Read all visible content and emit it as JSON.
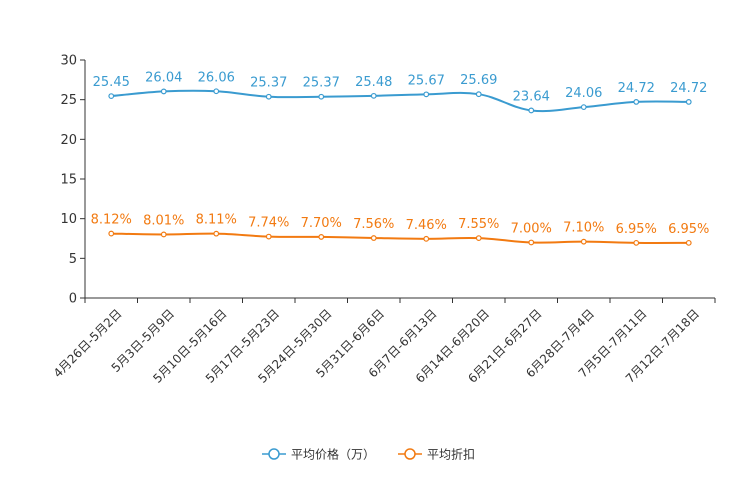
{
  "chart_data": {
    "type": "line",
    "title": "",
    "xlabel": "",
    "ylabel": "",
    "ylim": [
      0,
      30
    ],
    "yticks": [
      0,
      5,
      10,
      15,
      20,
      25,
      30
    ],
    "grid": false,
    "legend_position": "bottom-center",
    "categories": [
      "4月26日-5月2日",
      "5月3日-5月9日",
      "5月10日-5月16日",
      "5月17日-5月23日",
      "5月24日-5月30日",
      "5月31日-6月6日",
      "6月7日-6月13日",
      "6月14日-6月20日",
      "6月21日-6月27日",
      "6月28日-7月4日",
      "7月5日-7月11日",
      "7月12日-7月18日"
    ],
    "series": [
      {
        "name": "平均价格（万）",
        "color": "#3a9bd0",
        "values": [
          25.45,
          26.04,
          26.06,
          25.37,
          25.37,
          25.48,
          25.67,
          25.69,
          23.64,
          24.06,
          24.72,
          24.72
        ],
        "labels": [
          "25.45",
          "26.04",
          "26.06",
          "25.37",
          "25.37",
          "25.48",
          "25.67",
          "25.69",
          "23.64",
          "24.06",
          "24.72",
          "24.72"
        ]
      },
      {
        "name": "平均折扣",
        "color": "#f27a11",
        "values": [
          8.12,
          8.01,
          8.11,
          7.74,
          7.7,
          7.56,
          7.46,
          7.55,
          7.0,
          7.1,
          6.95,
          6.95
        ],
        "labels": [
          "8.12%",
          "8.01%",
          "8.11%",
          "7.74%",
          "7.70%",
          "7.56%",
          "7.46%",
          "7.55%",
          "7.00%",
          "7.10%",
          "6.95%",
          "6.95%"
        ]
      }
    ]
  }
}
